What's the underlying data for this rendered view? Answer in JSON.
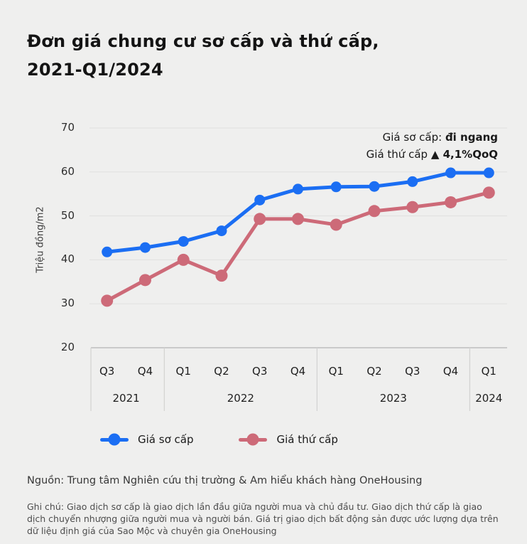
{
  "page": {
    "background": "#efefee"
  },
  "title": "Đơn giá chung cư sơ cấp và thứ cấp,\n2021-Q1/2024",
  "annotation": {
    "line1_plain": "Giá sơ cấp: ",
    "line1_bold": "đi ngang",
    "line2_plain": "Giá thứ cấp ",
    "line2_bold": "▲ 4,1%QoQ"
  },
  "chart_data": {
    "type": "line",
    "title": "Đơn giá chung cư sơ cấp và thứ cấp, 2021-Q1/2024",
    "ylabel": "Triệu đồng/m2",
    "ylim": [
      20,
      70
    ],
    "yticks": [
      70,
      60,
      50,
      40,
      30,
      20
    ],
    "grid": true,
    "legend_position": "bottom",
    "x_labels": [
      "Q3",
      "Q4",
      "Q1",
      "Q2",
      "Q3",
      "Q4",
      "Q1",
      "Q2",
      "Q3",
      "Q4",
      "Q1"
    ],
    "year_groups": [
      {
        "year": "2021",
        "count": 2
      },
      {
        "year": "2022",
        "count": 4
      },
      {
        "year": "2023",
        "count": 4
      },
      {
        "year": "2024",
        "count": 1
      }
    ],
    "series": [
      {
        "name": "Giá sơ cấp",
        "color": "#1b6ef3",
        "values": [
          41.8,
          42.8,
          44.2,
          46.6,
          53.6,
          56.1,
          56.6,
          56.7,
          57.8,
          59.8,
          59.8
        ]
      },
      {
        "name": "Giá thứ cấp",
        "color": "#cd6a78",
        "values": [
          30.7,
          35.4,
          40.0,
          36.4,
          49.3,
          49.3,
          48.0,
          51.1,
          52.0,
          53.1,
          55.3
        ]
      }
    ],
    "colors": {
      "grid": "#e0e0df",
      "axis": "#b5b5b5",
      "separator": "#d2d2d1"
    }
  },
  "source": "Nguồn: Trung tâm Nghiên cứu thị trường & Am hiểu khách hàng OneHousing",
  "note": "Ghi chú: Giao dịch sơ cấp là giao dịch lần đầu giữa người mua và chủ đầu tư. Giao dịch thứ cấp là giao dịch chuyển nhượng giữa người mua và người bán. Giá trị giao dịch bất động sản được ước lượng dựa trên dữ liệu định giá của Sao Mộc và chuyên gia OneHousing"
}
